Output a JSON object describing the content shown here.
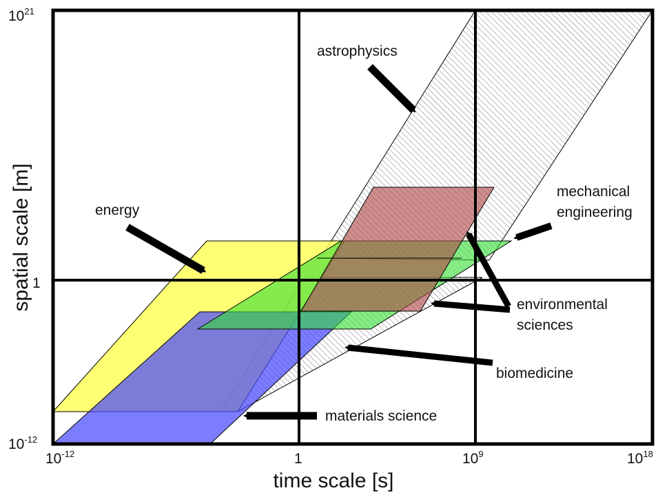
{
  "axes": {
    "xlabel": "time scale [s]",
    "ylabel": "spatial scale [m]",
    "x_ticks": [
      {
        "base": "10",
        "exp": "-12"
      },
      {
        "base": "1",
        "exp": ""
      },
      {
        "base": "10",
        "exp": "9"
      },
      {
        "base": "10",
        "exp": "18"
      }
    ],
    "y_ticks": [
      {
        "base": "10",
        "exp": "-12"
      },
      {
        "base": "1",
        "exp": ""
      },
      {
        "base": "10",
        "exp": "21"
      }
    ]
  },
  "regions": [
    {
      "label": "astrophysics",
      "style": "hatched"
    },
    {
      "label": "energy",
      "color": "#ffff55"
    },
    {
      "label": "materials science",
      "color": "#5555ff"
    },
    {
      "label": "environmental sciences",
      "color": "#33dd33"
    },
    {
      "label": "mechanical engineering",
      "color": "#b85454"
    },
    {
      "label": "biomedicine",
      "style": "hatched"
    }
  ],
  "labels": {
    "astrophysics": "astrophysics",
    "energy": "energy",
    "mechanical_1": "mechanical",
    "mechanical_2": "engineering",
    "environmental_1": "environmental",
    "environmental_2": "sciences",
    "biomedicine": "biomedicine",
    "materials": "materials science"
  }
}
